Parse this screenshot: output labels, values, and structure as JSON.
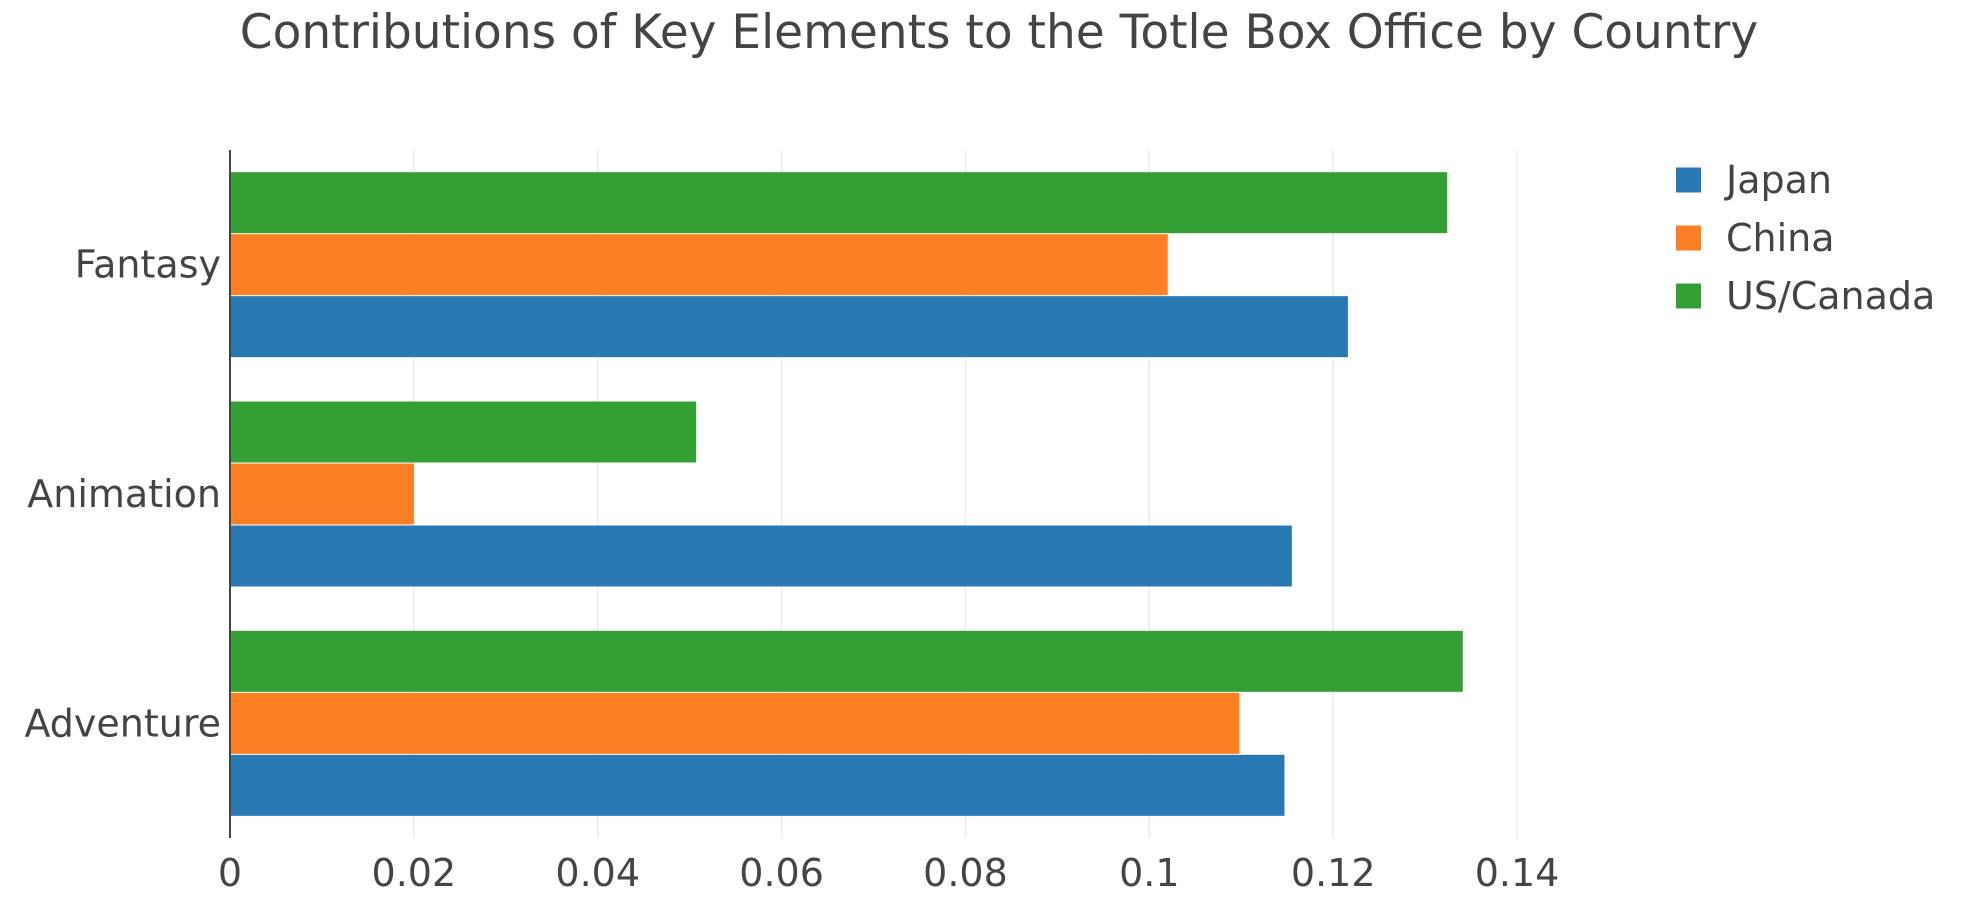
{
  "chart_data": {
    "type": "bar",
    "orientation": "horizontal",
    "title": "Contributions of Key Elements to the Totle Box Office by Country",
    "xlabel": "",
    "ylabel": "",
    "categories": [
      "Adventure",
      "Animation",
      "Fantasy"
    ],
    "series": [
      {
        "name": "Japan",
        "color": "#2878b4",
        "values": [
          0.1147,
          0.1155,
          0.1216
        ]
      },
      {
        "name": "China",
        "color": "#fd7f23",
        "values": [
          0.1098,
          0.02,
          0.102
        ]
      },
      {
        "name": "US/Canada",
        "color": "#34a034",
        "values": [
          0.1341,
          0.0507,
          0.1324
        ]
      }
    ],
    "xlim": [
      0,
      0.15
    ],
    "xticks": [
      0,
      0.02,
      0.04,
      0.06,
      0.08,
      0.1,
      0.12,
      0.14
    ],
    "xtick_labels": [
      "0",
      "0.02",
      "0.04",
      "0.06",
      "0.08",
      "0.1",
      "0.12",
      "0.14"
    ],
    "grid": true,
    "legend_position": "top-right"
  }
}
